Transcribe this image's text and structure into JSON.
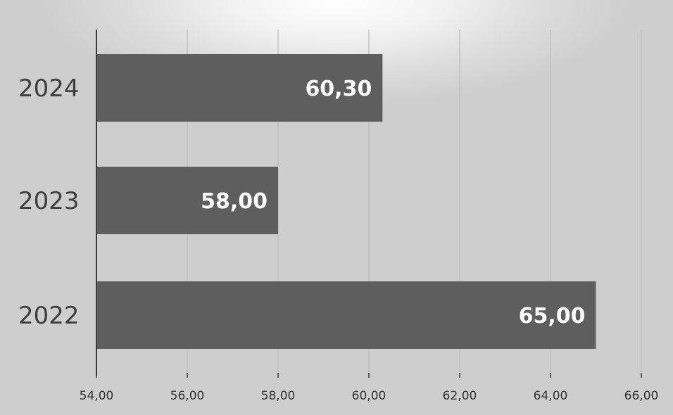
{
  "chart_data": {
    "type": "bar",
    "orientation": "horizontal",
    "categories": [
      "2024",
      "2023",
      "2022"
    ],
    "values": [
      60.3,
      58.0,
      65.0
    ],
    "value_labels": [
      "60,30",
      "58,00",
      "65,00"
    ],
    "xlim": [
      54,
      66
    ],
    "x_ticks": [
      54,
      56,
      58,
      60,
      62,
      64,
      66
    ],
    "x_tick_labels": [
      "54,00",
      "56,00",
      "58,00",
      "60,00",
      "62,00",
      "64,00",
      "66,00"
    ],
    "title": "",
    "xlabel": "",
    "ylabel": "",
    "grid": "vertical",
    "legend": "none",
    "colors": {
      "bar": "#5e5e5e",
      "grid": "#b9b9b9",
      "axis": "#3a3a3a",
      "data_label": "#ffffff",
      "category_label": "#3e3e3e",
      "tick_label": "#333333"
    }
  }
}
